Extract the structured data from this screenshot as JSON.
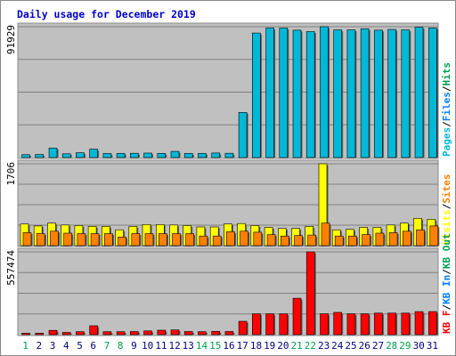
{
  "colors": {
    "frame": "#ffffff",
    "border": "#8a8a8a",
    "panel_bg": "#c0c0c0",
    "gridline": "#808080",
    "title": "#0000cc",
    "axis_text": "#000000",
    "day_normal": "#000080",
    "day_weekend": "#00a050",
    "pages": "#00b8d8",
    "files": "#0080ff",
    "hits": "#00a050",
    "visits": "#ffff00",
    "sites": "#ff8000",
    "kb_f": "#ff0000",
    "kb_in": "#0080ff",
    "kb_out": "#00a050",
    "bar_outline": "#000000"
  },
  "chart_data": {
    "type": "bar",
    "title": "Daily usage for December 2019",
    "categories": [
      "1",
      "2",
      "3",
      "4",
      "5",
      "6",
      "7",
      "8",
      "9",
      "10",
      "11",
      "12",
      "13",
      "14",
      "15",
      "16",
      "17",
      "18",
      "19",
      "20",
      "21",
      "22",
      "23",
      "24",
      "25",
      "26",
      "27",
      "28",
      "29",
      "30",
      "31"
    ],
    "weekend_days": [
      "1",
      "7",
      "8",
      "14",
      "15",
      "21",
      "22",
      "28",
      "29"
    ],
    "panels": [
      {
        "id": "top",
        "ymax_label": "91929",
        "ylim": [
          0,
          91929
        ],
        "grid": true,
        "legend": [
          {
            "text": "Pages",
            "color_key": "pages"
          },
          {
            "text": "/",
            "color_key": "axis_text"
          },
          {
            "text": "Files",
            "color_key": "files"
          },
          {
            "text": "/",
            "color_key": "axis_text"
          },
          {
            "text": "Hits",
            "color_key": "hits"
          }
        ],
        "series": [
          {
            "name": "Pages",
            "color_key": "pages",
            "values": [
              2000,
              2100,
              6600,
              2600,
              3400,
              5900,
              2800,
              2900,
              3000,
              3100,
              2900,
              4300,
              2900,
              2900,
              3200,
              3000,
              31700,
              87500,
              91000,
              91000,
              89500,
              88500,
              91929,
              89700,
              89700,
              90500,
              89500,
              90000,
              89700,
              91500,
              91000
            ]
          }
        ]
      },
      {
        "id": "middle",
        "ymax_label": "1706",
        "ylim": [
          0,
          1706
        ],
        "grid": true,
        "legend": [
          {
            "text": "Visits",
            "color_key": "visits"
          },
          {
            "text": "/",
            "color_key": "axis_text"
          },
          {
            "text": "Sites",
            "color_key": "sites"
          }
        ],
        "series": [
          {
            "name": "Visits",
            "color_key": "visits",
            "values": [
              450,
              410,
              470,
              430,
              420,
              400,
              400,
              330,
              400,
              440,
              440,
              430,
              420,
              390,
              390,
              450,
              460,
              420,
              380,
              360,
              360,
              400,
              1706,
              330,
              340,
              380,
              380,
              430,
              470,
              570,
              550
            ]
          },
          {
            "name": "Sites",
            "color_key": "sites",
            "values": [
              270,
              250,
              300,
              260,
              250,
              250,
              250,
              180,
              250,
              250,
              250,
              250,
              250,
              200,
              200,
              290,
              300,
              280,
              230,
              200,
              210,
              220,
              470,
              200,
              200,
              230,
              260,
              270,
              300,
              330,
              410
            ]
          }
        ]
      },
      {
        "id": "bottom",
        "ymax_label": "557474",
        "ylim": [
          0,
          557474
        ],
        "grid": true,
        "legend": [
          {
            "text": "KB F",
            "color_key": "kb_f"
          },
          {
            "text": "/",
            "color_key": "axis_text"
          },
          {
            "text": "KB In",
            "color_key": "kb_in"
          },
          {
            "text": "/",
            "color_key": "axis_text"
          },
          {
            "text": "KB Out",
            "color_key": "kb_out"
          }
        ],
        "series": [
          {
            "name": "KB F",
            "color_key": "kb_f",
            "values": [
              10000,
              10000,
              29000,
              15000,
              20000,
              60000,
              20000,
              20000,
              21000,
              25000,
              30000,
              32000,
              21000,
              20000,
              22000,
              21000,
              90000,
              140000,
              140000,
              140000,
              245000,
              557474,
              140000,
              150000,
              140000,
              140000,
              145000,
              145000,
              145000,
              155000,
              155000
            ]
          }
        ]
      }
    ]
  }
}
